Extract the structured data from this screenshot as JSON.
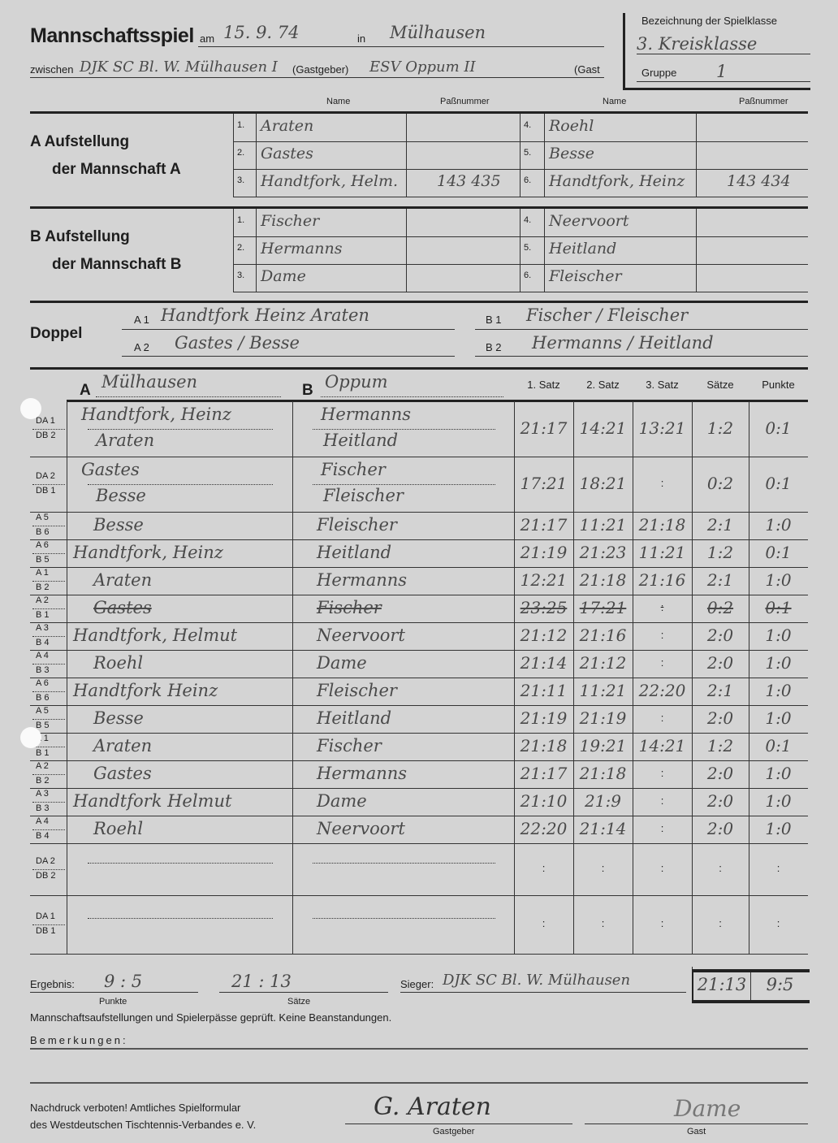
{
  "header": {
    "title": "Mannschaftsspiel",
    "am_label": "am",
    "date": "15. 9. 74",
    "in_label": "in",
    "place": "Mülhausen",
    "zwischen_label": "zwischen",
    "home_team": "DJK SC Bl. W. Mülhausen I",
    "home_label": "(Gastgeber)",
    "guest_team": "ESV Oppum II",
    "guest_label": "(Gast",
    "class_label": "Bezeichnung der Spielklasse",
    "class_value": "3. Kreisklasse",
    "group_label": "Gruppe",
    "group_value": "1"
  },
  "columns": {
    "name": "Name",
    "pass": "Paßnummer"
  },
  "lineup_a": {
    "label_1": "A  Aufstellung",
    "label_2": "der Mannschaft A",
    "players": [
      {
        "no": "1.",
        "name": "Araten",
        "pass": ""
      },
      {
        "no": "2.",
        "name": "Gastes",
        "pass": ""
      },
      {
        "no": "3.",
        "name": "Handtfork, Helm.",
        "pass": "143 435"
      },
      {
        "no": "4.",
        "name": "Roehl",
        "pass": ""
      },
      {
        "no": "5.",
        "name": "Besse",
        "pass": ""
      },
      {
        "no": "6.",
        "name": "Handtfork, Heinz",
        "pass": "143 434"
      }
    ]
  },
  "lineup_b": {
    "label_1": "B  Aufstellung",
    "label_2": "der Mannschaft B",
    "players": [
      {
        "no": "1.",
        "name": "Fischer",
        "pass": ""
      },
      {
        "no": "2.",
        "name": "Hermanns",
        "pass": ""
      },
      {
        "no": "3.",
        "name": "Dame",
        "pass": ""
      },
      {
        "no": "4.",
        "name": "Neervoort",
        "pass": ""
      },
      {
        "no": "5.",
        "name": "Heitland",
        "pass": ""
      },
      {
        "no": "6.",
        "name": "Fleischer",
        "pass": ""
      }
    ]
  },
  "doubles": {
    "label": "Doppel",
    "a1_label": "A 1",
    "a1_value": "Handtfork Heinz  Araten",
    "a2_label": "A 2",
    "a2_value": "Gastes    /  Besse",
    "b1_label": "B 1",
    "b1_value": "Fischer    /  Fleischer",
    "b2_label": "B 2",
    "b2_value": "Hermanns /  Heitland"
  },
  "matches_header": {
    "a_label": "A",
    "a_team": "Mülhausen",
    "b_label": "B",
    "b_team": "Oppum",
    "set1": "1. Satz",
    "set2": "2. Satz",
    "set3": "3. Satz",
    "sets": "Sätze",
    "points": "Punkte"
  },
  "matches": [
    {
      "type": "double",
      "code1": "DA 1",
      "code2": "DB 2",
      "a": [
        "Handtfork, Heinz",
        "Araten"
      ],
      "b": [
        "Hermanns",
        "Heitland"
      ],
      "s1": "21:17",
      "s2": "14:21",
      "s3": "13:21",
      "sets": "1:2",
      "points": "0:1"
    },
    {
      "type": "double",
      "code1": "DA 2",
      "code2": "DB 1",
      "a": [
        "Gastes",
        "Besse"
      ],
      "b": [
        "Fischer",
        "Fleischer"
      ],
      "s1": "17:21",
      "s2": "18:21",
      "s3": ":",
      "sets": "0:2",
      "points": "0:1"
    },
    {
      "type": "single",
      "code1": "A 5",
      "code2": "B 6",
      "a": [
        "Besse"
      ],
      "b": [
        "Fleischer"
      ],
      "s1": "21:17",
      "s2": "11:21",
      "s3": "21:18",
      "sets": "2:1",
      "points": "1:0"
    },
    {
      "type": "single",
      "code1": "A 6",
      "code2": "B 5",
      "a": [
        "Handtfork, Heinz"
      ],
      "b": [
        "Heitland"
      ],
      "s1": "21:19",
      "s2": "21:23",
      "s3": "11:21",
      "sets": "1:2",
      "points": "0:1"
    },
    {
      "type": "single",
      "code1": "A 1",
      "code2": "B 2",
      "a": [
        "Araten"
      ],
      "b": [
        "Hermanns"
      ],
      "s1": "12:21",
      "s2": "21:18",
      "s3": "21:16",
      "sets": "2:1",
      "points": "1:0"
    },
    {
      "type": "single",
      "code1": "A 2",
      "code2": "B 1",
      "a": [
        "Gastes"
      ],
      "b": [
        "Fischer"
      ],
      "s1": "23:25",
      "s2": "17:21",
      "s3": ":",
      "sets": "0:2",
      "points": "0:1",
      "struck": true
    },
    {
      "type": "single",
      "code1": "A 3",
      "code2": "B 4",
      "a": [
        "Handtfork, Helmut"
      ],
      "b": [
        "Neervoort"
      ],
      "s1": "21:12",
      "s2": "21:16",
      "s3": ":",
      "sets": "2:0",
      "points": "1:0"
    },
    {
      "type": "single",
      "code1": "A 4",
      "code2": "B 3",
      "a": [
        "Roehl"
      ],
      "b": [
        "Dame"
      ],
      "s1": "21:14",
      "s2": "21:12",
      "s3": ":",
      "sets": "2:0",
      "points": "1:0"
    },
    {
      "type": "single",
      "code1": "A 6",
      "code2": "B 6",
      "a": [
        "Handtfork Heinz"
      ],
      "b": [
        "Fleischer"
      ],
      "s1": "21:11",
      "s2": "11:21",
      "s3": "22:20",
      "sets": "2:1",
      "points": "1:0"
    },
    {
      "type": "single",
      "code1": "A 5",
      "code2": "B 5",
      "a": [
        "Besse"
      ],
      "b": [
        "Heitland"
      ],
      "s1": "21:19",
      "s2": "21:19",
      "s3": ":",
      "sets": "2:0",
      "points": "1:0"
    },
    {
      "type": "single",
      "code1": "A 1",
      "code2": "B 1",
      "a": [
        "Araten"
      ],
      "b": [
        "Fischer"
      ],
      "s1": "21:18",
      "s2": "19:21",
      "s3": "14:21",
      "sets": "1:2",
      "points": "0:1"
    },
    {
      "type": "single",
      "code1": "A 2",
      "code2": "B 2",
      "a": [
        "Gastes"
      ],
      "b": [
        "Hermanns"
      ],
      "s1": "21:17",
      "s2": "21:18",
      "s3": ":",
      "sets": "2:0",
      "points": "1:0"
    },
    {
      "type": "single",
      "code1": "A 3",
      "code2": "B 3",
      "a": [
        "Handtfork Helmut"
      ],
      "b": [
        "Dame"
      ],
      "s1": "21:10",
      "s2": "21:9",
      "s3": ":",
      "sets": "2:0",
      "points": "1:0"
    },
    {
      "type": "single",
      "code1": "A 4",
      "code2": "B 4",
      "a": [
        "Roehl"
      ],
      "b": [
        "Neervoort"
      ],
      "s1": "22:20",
      "s2": "21:14",
      "s3": ":",
      "sets": "2:0",
      "points": "1:0"
    },
    {
      "type": "empty",
      "code1": "DA 2",
      "code2": "DB 2",
      "a": [],
      "b": [],
      "s1": ":",
      "s2": ":",
      "s3": ":",
      "sets": ":",
      "points": ":"
    },
    {
      "type": "empty",
      "code1": "DA 1",
      "code2": "DB 1",
      "a": [],
      "b": [],
      "s1": ":",
      "s2": ":",
      "s3": ":",
      "sets": ":",
      "points": ":"
    }
  ],
  "result": {
    "label": "Ergebnis:",
    "points": "9   :  5",
    "points_label": "Punkte",
    "sets": "21   :  13",
    "sets_label": "Sätze",
    "winner_label": "Sieger:",
    "winner": "DJK SC Bl. W. Mülhausen",
    "box_sets": "21:13",
    "box_points": "9:5"
  },
  "footer": {
    "checked": "Mannschaftsaufstellungen und Spielerpässe geprüft. Keine Beanstandungen.",
    "remarks_label": "Bemerkungen:",
    "note_1": "Nachdruck verboten!  Amtliches Spielformular",
    "note_2": "des Westdeutschen Tischtennis-Verbandes e. V.",
    "sig_home_label": "Gastgeber",
    "sig_guest_label": "Gast",
    "sig_home": "G. Araten",
    "sig_guest": "Dame"
  }
}
